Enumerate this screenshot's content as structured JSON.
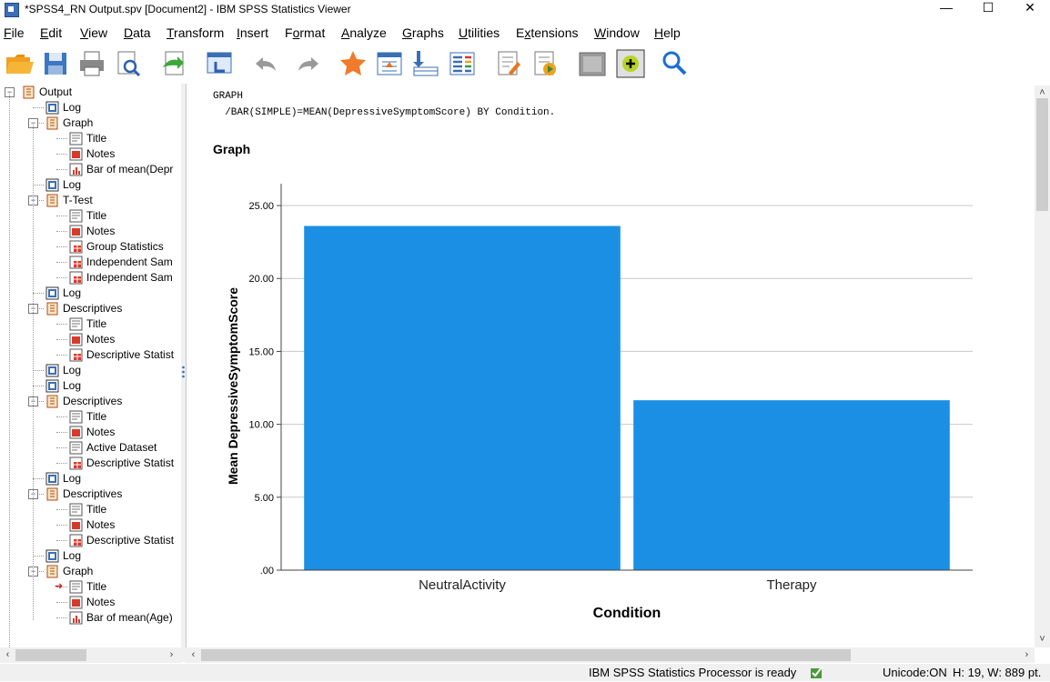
{
  "window": {
    "title": "*SPSS4_RN Output.spv [Document2] - IBM SPSS Statistics Viewer",
    "min": "—",
    "max": "☐",
    "close": "✕"
  },
  "menu": [
    {
      "label": "File",
      "u": "F",
      "rest": "ile"
    },
    {
      "label": "Edit",
      "u": "E",
      "rest": "dit"
    },
    {
      "label": "View",
      "u": "V",
      "rest": "iew"
    },
    {
      "label": "Data",
      "u": "D",
      "rest": "ata"
    },
    {
      "label": "Transform",
      "u": "T",
      "rest": "ransform"
    },
    {
      "label": "Insert",
      "u": "I",
      "rest": "nsert"
    },
    {
      "label": "Format",
      "u": "F",
      "rest": "ormat",
      "upos": 1
    },
    {
      "label": "Analyze",
      "u": "A",
      "rest": "nalyze"
    },
    {
      "label": "Graphs",
      "u": "G",
      "rest": "raphs"
    },
    {
      "label": "Utilities",
      "u": "U",
      "rest": "tilities"
    },
    {
      "label": "Extensions",
      "u": "x",
      "rest": "tensions",
      "pre": "E"
    },
    {
      "label": "Window",
      "u": "W",
      "rest": "indow"
    },
    {
      "label": "Help",
      "u": "H",
      "rest": "elp"
    }
  ],
  "toolbar": [
    "open-icon",
    "save-icon",
    "print-icon",
    "print-preview-icon",
    "export-icon",
    "recall-dialog-icon",
    "undo-icon",
    "redo-icon",
    "go-to-case-icon",
    "go-to-variable-icon",
    "insert-cases-icon",
    "variables-icon",
    "insert-heading-icon",
    "run-syntax-icon",
    "designate-window-icon",
    "add-icon",
    "find-icon"
  ],
  "outline": {
    "nodes": [
      {
        "label": "Output",
        "icon": "book",
        "level": 0,
        "expander": "−"
      },
      {
        "label": "Log",
        "icon": "log",
        "level": 1
      },
      {
        "label": "Graph",
        "icon": "book",
        "level": 1,
        "expander": "−"
      },
      {
        "label": "Title",
        "icon": "title",
        "level": 2
      },
      {
        "label": "Notes",
        "icon": "notes",
        "level": 2
      },
      {
        "label": "Bar of mean(Depr",
        "icon": "chart",
        "level": 2
      },
      {
        "label": "Log",
        "icon": "log",
        "level": 1
      },
      {
        "label": "T-Test",
        "icon": "book",
        "level": 1,
        "expander": "−"
      },
      {
        "label": "Title",
        "icon": "title",
        "level": 2
      },
      {
        "label": "Notes",
        "icon": "notes",
        "level": 2
      },
      {
        "label": "Group Statistics",
        "icon": "table",
        "level": 2
      },
      {
        "label": "Independent Sam",
        "icon": "table",
        "level": 2
      },
      {
        "label": "Independent Sam",
        "icon": "table",
        "level": 2
      },
      {
        "label": "Log",
        "icon": "log",
        "level": 1
      },
      {
        "label": "Descriptives",
        "icon": "book",
        "level": 1,
        "expander": "−"
      },
      {
        "label": "Title",
        "icon": "title",
        "level": 2
      },
      {
        "label": "Notes",
        "icon": "notes",
        "level": 2
      },
      {
        "label": "Descriptive Statist",
        "icon": "table",
        "level": 2
      },
      {
        "label": "Log",
        "icon": "log",
        "level": 1
      },
      {
        "label": "Log",
        "icon": "log",
        "level": 1
      },
      {
        "label": "Descriptives",
        "icon": "book",
        "level": 1,
        "expander": "−"
      },
      {
        "label": "Title",
        "icon": "title",
        "level": 2
      },
      {
        "label": "Notes",
        "icon": "notes",
        "level": 2
      },
      {
        "label": "Active Dataset",
        "icon": "title",
        "level": 2
      },
      {
        "label": "Descriptive Statist",
        "icon": "table",
        "level": 2
      },
      {
        "label": "Log",
        "icon": "log",
        "level": 1
      },
      {
        "label": "Descriptives",
        "icon": "book",
        "level": 1,
        "expander": "−"
      },
      {
        "label": "Title",
        "icon": "title",
        "level": 2
      },
      {
        "label": "Notes",
        "icon": "notes",
        "level": 2
      },
      {
        "label": "Descriptive Statist",
        "icon": "table",
        "level": 2
      },
      {
        "label": "Log",
        "icon": "log",
        "level": 1
      },
      {
        "label": "Graph",
        "icon": "book",
        "level": 1,
        "expander": "−"
      },
      {
        "label": "Title",
        "icon": "title",
        "level": 2,
        "current": true
      },
      {
        "label": "Notes",
        "icon": "notes",
        "level": 2
      },
      {
        "label": "Bar of mean(Age)",
        "icon": "chart",
        "level": 2
      }
    ]
  },
  "content": {
    "syntax": "GRAPH\n  /BAR(SIMPLE)=MEAN(DepressiveSymptomScore) BY Condition.",
    "heading": "Graph"
  },
  "chart_data": {
    "type": "bar",
    "categories": [
      "NeutralActivity",
      "Therapy"
    ],
    "values": [
      23.6,
      11.65
    ],
    "xlabel": "Condition",
    "ylabel": "Mean DepressiveSymptomScore",
    "ylim": [
      0,
      26.5
    ],
    "yticks": [
      0,
      5,
      10,
      15,
      20,
      25
    ],
    "ytick_labels": [
      ".00",
      "5.00",
      "10.00",
      "15.00",
      "20.00",
      "25.00"
    ],
    "grid": true,
    "bar_color": "#1b8fe3"
  },
  "status": {
    "processor": "IBM SPSS Statistics Processor is ready",
    "unicode": "Unicode:ON",
    "dims": "H: 19, W: 889 pt."
  }
}
